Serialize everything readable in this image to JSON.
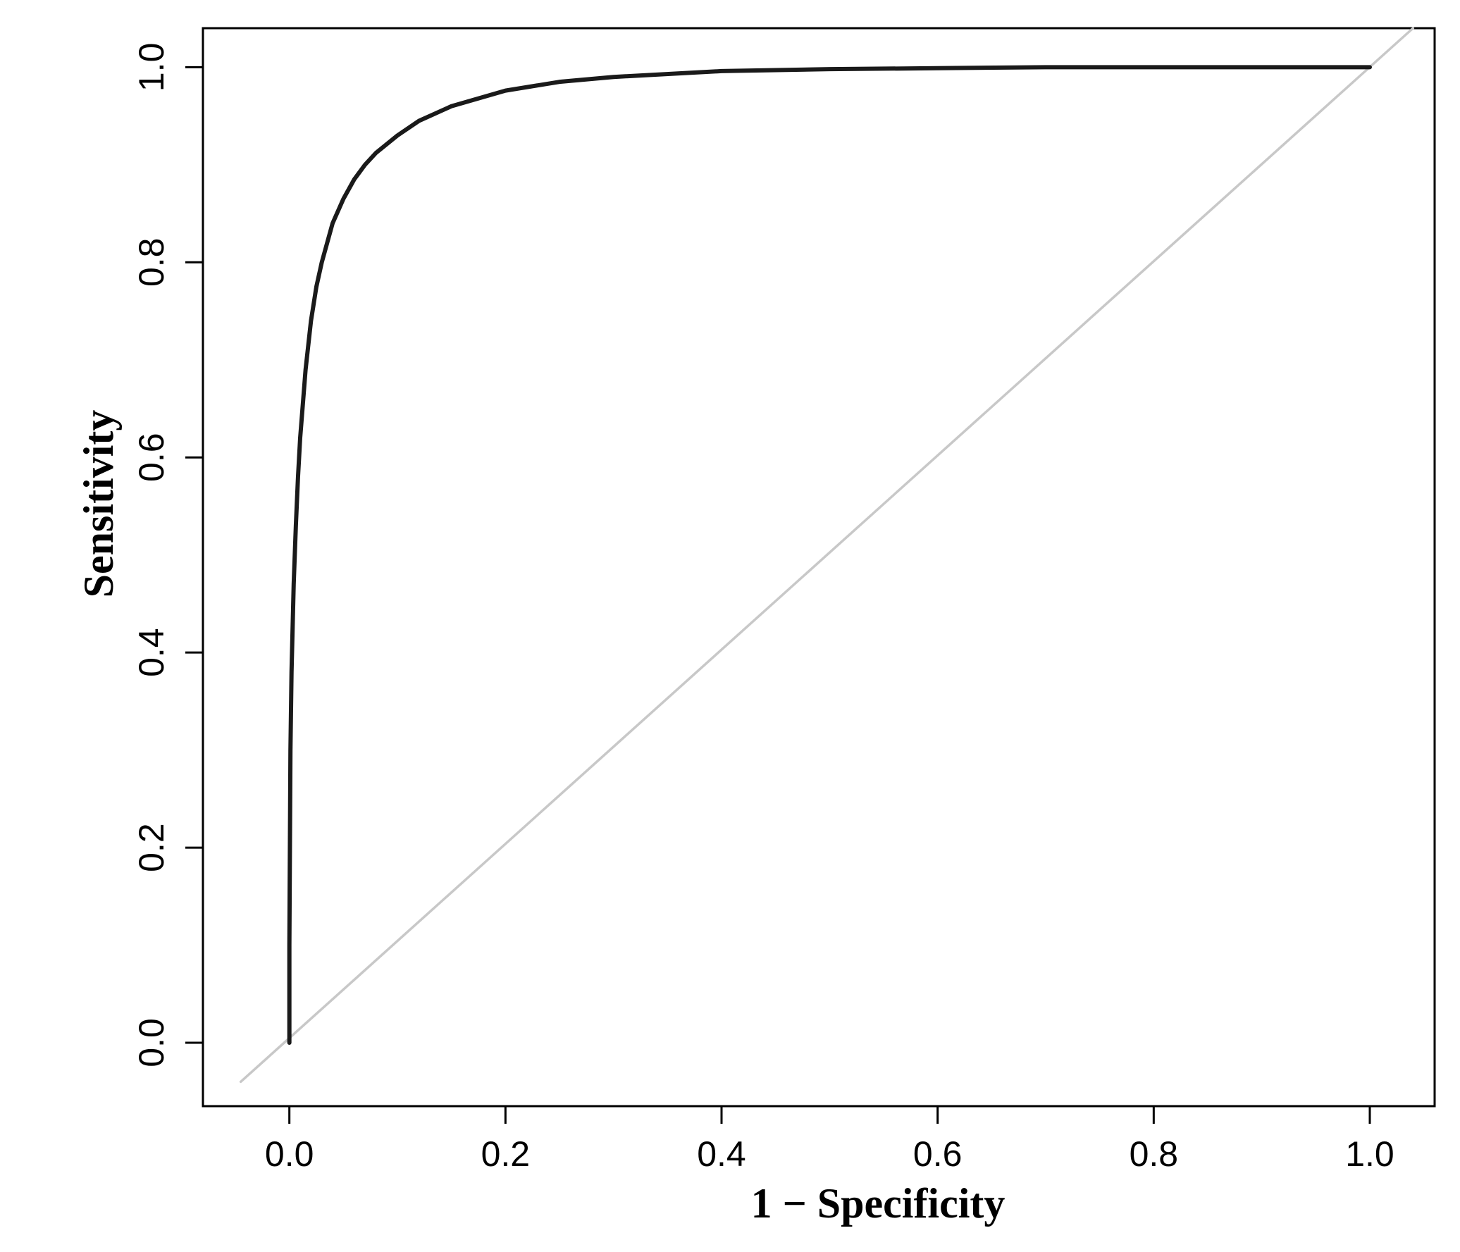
{
  "chart_data": {
    "type": "line",
    "title": "",
    "xlabel": "1 − Specificity",
    "ylabel": "Sensitivity",
    "xlim": [
      -0.08,
      1.06
    ],
    "ylim": [
      -0.065,
      1.04
    ],
    "x_ticks": [
      "0.0",
      "0.2",
      "0.4",
      "0.6",
      "0.8",
      "1.0"
    ],
    "y_ticks": [
      "0.0",
      "0.2",
      "0.4",
      "0.6",
      "0.8",
      "1.0"
    ],
    "grid": false,
    "legend": "none",
    "series": [
      {
        "role": "roc-curve",
        "color": "#1a1a1a",
        "x": [
          0.0,
          0.0,
          0.001,
          0.002,
          0.004,
          0.006,
          0.008,
          0.01,
          0.015,
          0.02,
          0.025,
          0.03,
          0.04,
          0.05,
          0.06,
          0.07,
          0.08,
          0.1,
          0.12,
          0.15,
          0.2,
          0.25,
          0.3,
          0.4,
          0.5,
          0.6,
          0.7,
          0.8,
          0.9,
          1.0
        ],
        "y": [
          0.0,
          0.1,
          0.3,
          0.38,
          0.47,
          0.53,
          0.58,
          0.62,
          0.69,
          0.74,
          0.775,
          0.8,
          0.84,
          0.865,
          0.885,
          0.9,
          0.912,
          0.93,
          0.945,
          0.96,
          0.976,
          0.985,
          0.99,
          0.996,
          0.998,
          0.999,
          1.0,
          1.0,
          1.0,
          1.0
        ]
      },
      {
        "role": "chance-diagonal",
        "color": "#c8c8c8",
        "x": [
          -0.045,
          1.04
        ],
        "y": [
          -0.04,
          1.04
        ]
      }
    ]
  }
}
